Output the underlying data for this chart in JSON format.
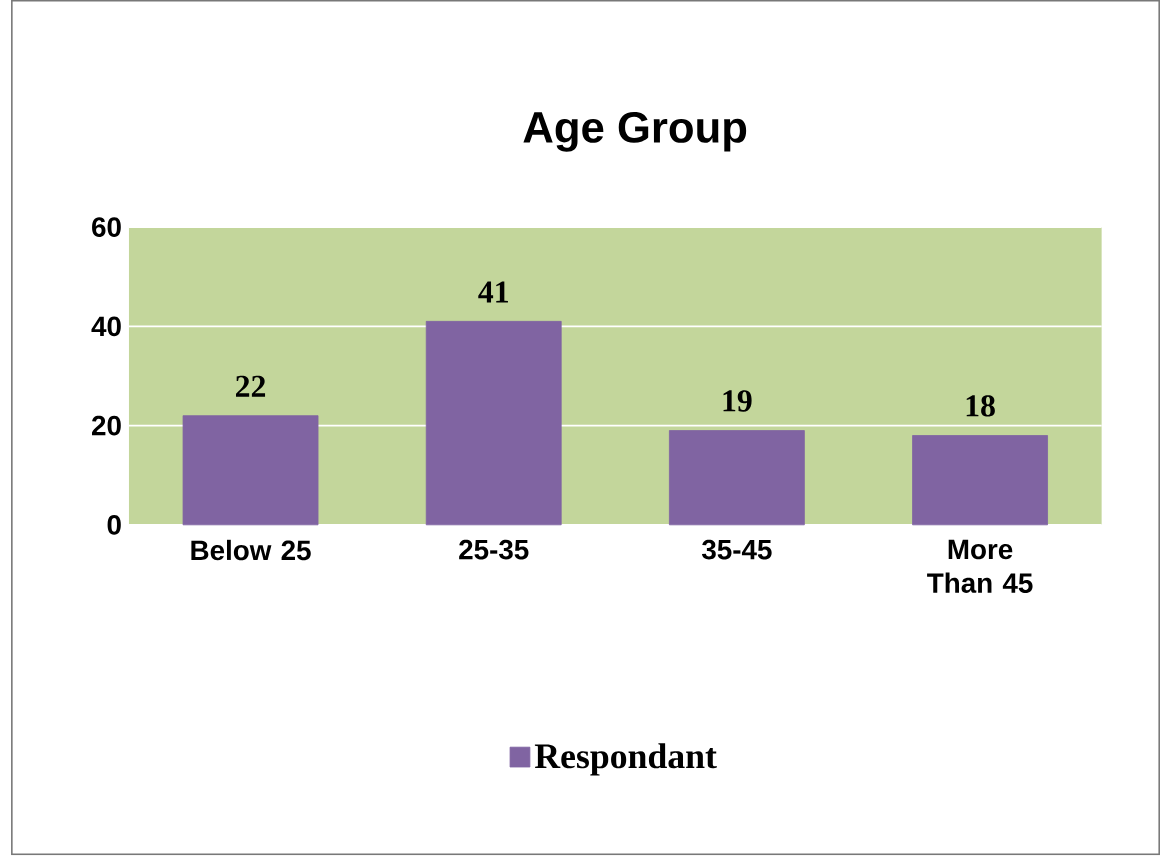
{
  "chart_data": {
    "type": "bar",
    "title": "Age Group",
    "categories": [
      "Below 25",
      "25-35",
      "35-45",
      "More Than 45"
    ],
    "series": [
      {
        "name": "Respondant",
        "color": "#8064a2",
        "values": [
          22,
          41,
          19,
          18
        ]
      }
    ],
    "ylim": [
      0,
      60
    ],
    "yticks": [
      0,
      20,
      40,
      60
    ],
    "grid": "y",
    "legend": "bottom",
    "data_labels": true
  }
}
